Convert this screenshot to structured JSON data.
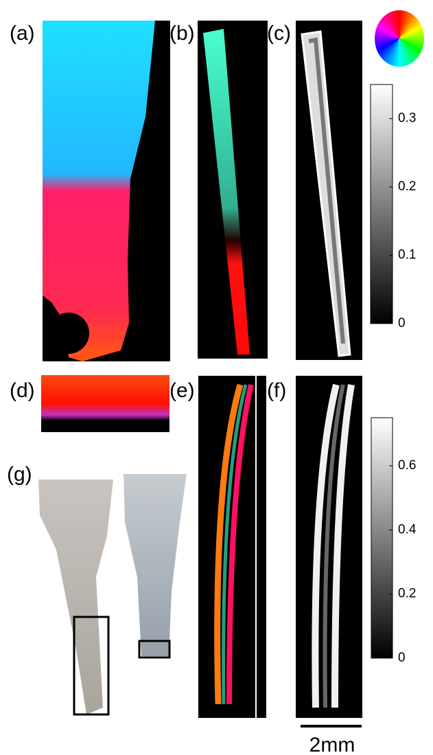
{
  "panels": [
    "(a)",
    "(b)",
    "(c)",
    "(d)",
    "(e)",
    "(f)",
    "(g)"
  ],
  "colorbar_top": {
    "lim": [
      0,
      0.35
    ],
    "ticks": [
      0,
      0.1,
      0.2,
      0.3
    ]
  },
  "colorbar_bottom": {
    "lim": [
      0,
      0.75
    ],
    "ticks": [
      0,
      0.2,
      0.4,
      0.6
    ]
  },
  "scale_bar": "2mm"
}
